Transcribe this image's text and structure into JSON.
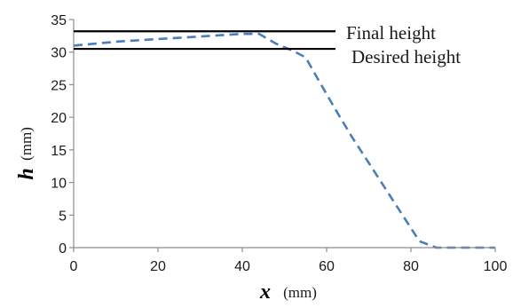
{
  "chart_data": {
    "type": "line",
    "xlabel": {
      "symbol": "x",
      "unit": "(mm)"
    },
    "ylabel": {
      "symbol": "h",
      "unit": "(mm)"
    },
    "xlim": [
      0,
      100
    ],
    "ylim": [
      0,
      35
    ],
    "x_ticks": [
      0,
      20,
      40,
      60,
      80,
      100
    ],
    "y_ticks": [
      0,
      5,
      10,
      15,
      20,
      25,
      30,
      35
    ],
    "grid": false,
    "series": [
      {
        "style": "dashed",
        "color": "#4a7ebb",
        "x": [
          0,
          5,
          10,
          15,
          20,
          25,
          30,
          35,
          40,
          44,
          48,
          52,
          55,
          58,
          62,
          66,
          70,
          74,
          78,
          82,
          86,
          88,
          92,
          96,
          100
        ],
        "y": [
          31.0,
          31.3,
          31.6,
          31.8,
          32.0,
          32.2,
          32.4,
          32.6,
          32.8,
          32.8,
          31.3,
          30.2,
          29.2,
          25.8,
          21.3,
          17.0,
          13.0,
          9.0,
          5.0,
          1.0,
          0.0,
          0.0,
          0.0,
          0.0,
          0.0
        ]
      }
    ],
    "reference_lines": [
      {
        "label": "Final height",
        "y": 33.2,
        "color": "#000000"
      },
      {
        "label": "Desired height",
        "y": 30.5,
        "color": "#000000"
      }
    ]
  }
}
